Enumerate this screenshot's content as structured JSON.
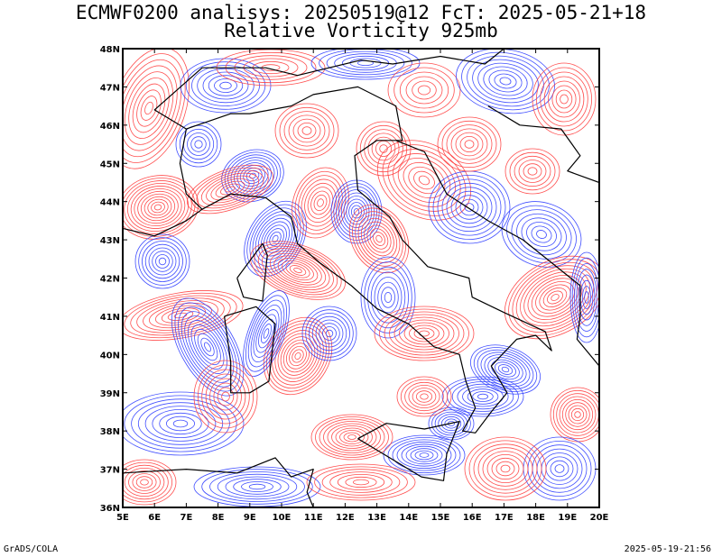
{
  "title_line1": "ECMWF0200 analisys: 20250519@12 FcT: 2025-05-21+18",
  "title_line2": "Relative Vorticity 925mb",
  "footer_left": "GrADS/COLA",
  "footer_right": "2025-05-19-21:56",
  "colors": {
    "positive_contours": "#ff3b3b",
    "negative_contours": "#2b3bff",
    "coastline": "#000000",
    "frame": "#000000"
  },
  "map": {
    "lon_range": [
      5,
      20
    ],
    "lat_range": [
      36,
      48
    ],
    "lon_ticks": [
      "5E",
      "6E",
      "7E",
      "8E",
      "9E",
      "10E",
      "11E",
      "12E",
      "13E",
      "14E",
      "15E",
      "16E",
      "17E",
      "18E",
      "19E",
      "20E"
    ],
    "lat_ticks": [
      "36N",
      "37N",
      "38N",
      "39N",
      "40N",
      "41N",
      "42N",
      "43N",
      "44N",
      "45N",
      "46N",
      "47N",
      "48N"
    ]
  }
}
